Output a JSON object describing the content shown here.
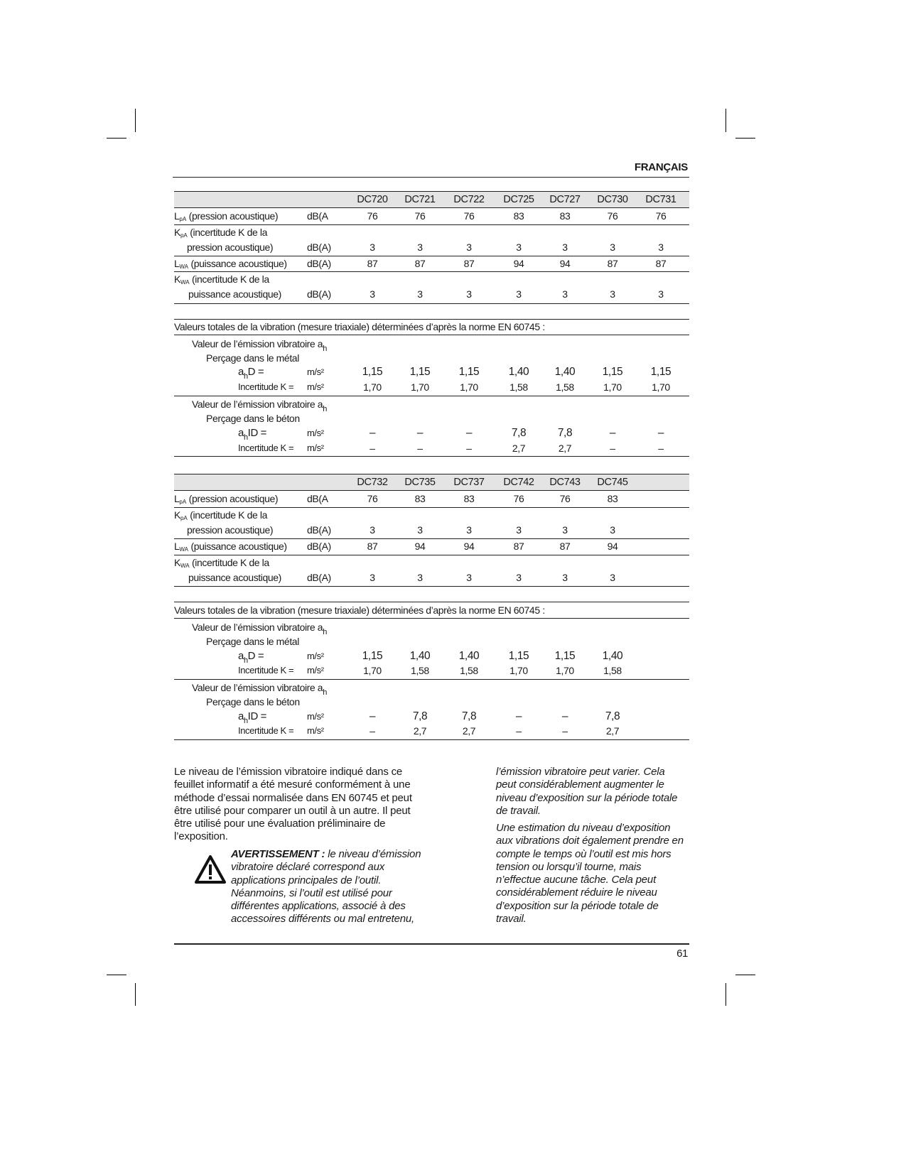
{
  "header": {
    "language": "FRANÇAIS"
  },
  "tables": [
    {
      "models": [
        "DC720",
        "DC721",
        "DC722",
        "DC725",
        "DC727",
        "DC730",
        "DC731"
      ],
      "acoustic": [
        {
          "sym": "L",
          "sub": "pA",
          "text": " (pression acoustique)",
          "line2": "",
          "unit": "dB(A",
          "values": [
            "76",
            "76",
            "76",
            "83",
            "83",
            "76",
            "76"
          ]
        },
        {
          "sym": "K",
          "sub": "pA",
          "text": " (incertitude K de la",
          "line2": "pression acoustique)",
          "unit": "dB(A)",
          "values": [
            "3",
            "3",
            "3",
            "3",
            "3",
            "3",
            "3"
          ]
        },
        {
          "sym": "L",
          "sub": "WA",
          "text": " (puissance acoustique)",
          "line2": "",
          "unit": "dB(A)",
          "values": [
            "87",
            "87",
            "87",
            "94",
            "94",
            "87",
            "87"
          ]
        },
        {
          "sym": "K",
          "sub": "WA",
          "text": " (incertitude K de la",
          "line2": "puissance acoustique)",
          "unit": "dB(A)",
          "values": [
            "3",
            "3",
            "3",
            "3",
            "3",
            "3",
            "3"
          ]
        }
      ],
      "vibration": {
        "title": "Valeurs totales de la vibration (mesure triaxiale) déterminées d’après la norme EN 60745 :",
        "groups": [
          {
            "heading": "Valeur de l’émission vibratoire a",
            "heading_sub": "h",
            "application": "Perçage dans le métal",
            "rows": [
              {
                "sym": "a",
                "sub": "h",
                "text": "D =",
                "unit": "m/s²",
                "values": [
                  "1,15",
                  "1,15",
                  "1,15",
                  "1,40",
                  "1,40",
                  "1,15",
                  "1,15"
                ]
              },
              {
                "sym": "",
                "sub": "",
                "text": "Incertitude K =",
                "unit": "m/s²",
                "values": [
                  "1,70",
                  "1,70",
                  "1,70",
                  "1,58",
                  "1,58",
                  "1,70",
                  "1,70"
                ]
              }
            ]
          },
          {
            "heading": "Valeur de l’émission vibratoire a",
            "heading_sub": "h",
            "application": "Perçage dans le béton",
            "rows": [
              {
                "sym": "a",
                "sub": "h",
                "text": "ID =",
                "unit": "m/s²",
                "values": [
                  "–",
                  "–",
                  "–",
                  "7,8",
                  "7,8",
                  "–",
                  "–"
                ]
              },
              {
                "sym": "",
                "sub": "",
                "text": "Incertitude K =",
                "unit": "m/s²",
                "values": [
                  "–",
                  "–",
                  "–",
                  "2,7",
                  "2,7",
                  "–",
                  "–"
                ]
              }
            ]
          }
        ]
      }
    },
    {
      "models": [
        "DC732",
        "DC735",
        "DC737",
        "DC742",
        "DC743",
        "DC745"
      ],
      "acoustic": [
        {
          "sym": "L",
          "sub": "pA",
          "text": " (pression acoustique)",
          "line2": "",
          "unit": "dB(A",
          "values": [
            "76",
            "83",
            "83",
            "76",
            "76",
            "83"
          ]
        },
        {
          "sym": "K",
          "sub": "pA",
          "text": " (incertitude K de la",
          "line2": "pression acoustique)",
          "unit": "dB(A)",
          "values": [
            "3",
            "3",
            "3",
            "3",
            "3",
            "3"
          ]
        },
        {
          "sym": "L",
          "sub": "WA",
          "text": " (puissance acoustique)",
          "line2": "",
          "unit": "dB(A)",
          "values": [
            "87",
            "94",
            "94",
            "87",
            "87",
            "94"
          ]
        },
        {
          "sym": "K",
          "sub": "WA",
          "text": " (incertitude K de la",
          "line2": "puissance acoustique)",
          "unit": "dB(A)",
          "values": [
            "3",
            "3",
            "3",
            "3",
            "3",
            "3"
          ]
        }
      ],
      "vibration": {
        "title": "Valeurs totales de la vibration (mesure triaxiale) déterminées d’après la norme EN 60745 :",
        "groups": [
          {
            "heading": "Valeur de l’émission vibratoire a",
            "heading_sub": "h",
            "application": "Perçage dans le métal",
            "rows": [
              {
                "sym": "a",
                "sub": "h",
                "text": "D =",
                "unit": "m/s²",
                "values": [
                  "1,15",
                  "1,40",
                  "1,40",
                  "1,15",
                  "1,15",
                  "1,40"
                ]
              },
              {
                "sym": "",
                "sub": "",
                "text": "Incertitude K =",
                "unit": "m/s²",
                "values": [
                  "1,70",
                  "1,58",
                  "1,58",
                  "1,70",
                  "1,70",
                  "1,58"
                ]
              }
            ]
          },
          {
            "heading": "Valeur de l’émission vibratoire a",
            "heading_sub": "h",
            "application": "Perçage dans le béton",
            "rows": [
              {
                "sym": "a",
                "sub": "h",
                "text": "ID =",
                "unit": "m/s²",
                "values": [
                  "–",
                  "7,8",
                  "7,8",
                  "–",
                  "–",
                  "7,8"
                ]
              },
              {
                "sym": "",
                "sub": "",
                "text": "Incertitude K =",
                "unit": "m/s²",
                "values": [
                  "–",
                  "2,7",
                  "2,7",
                  "–",
                  "–",
                  "2,7"
                ]
              }
            ]
          }
        ]
      }
    }
  ],
  "body": {
    "left_paragraph": "Le niveau de l’émission vibratoire indiqué dans ce feuillet informatif a été mesuré conformément à une méthode d’essai normalisée dans EN 60745 et peut être utilisé pour comparer un outil à un autre. Il peut être utilisé pour une évaluation préliminaire de l’exposition.",
    "warning_label": "AVERTISSEMENT :",
    "warning_text": " le niveau d’émission vibratoire déclaré correspond aux applications principales de l’outil. Néanmoins, si l’outil est utilisé pour différentes applications, associé à des accessoires différents ou mal entretenu,",
    "warning_icon": "warning-triangle-icon",
    "right_paragraph_1": "l’émission vibratoire peut varier. Cela peut considérablement augmenter le niveau d’exposition sur la période totale de travail.",
    "right_paragraph_2": "Une estimation du niveau d’exposition aux vibrations doit également prendre en compte le temps où l’outil est mis hors tension ou lorsqu’il tourne, mais n’effectue aucune tâche. Cela peut considérablement réduire le niveau d’exposition sur la période totale de travail."
  },
  "footer": {
    "page_number": "61"
  }
}
